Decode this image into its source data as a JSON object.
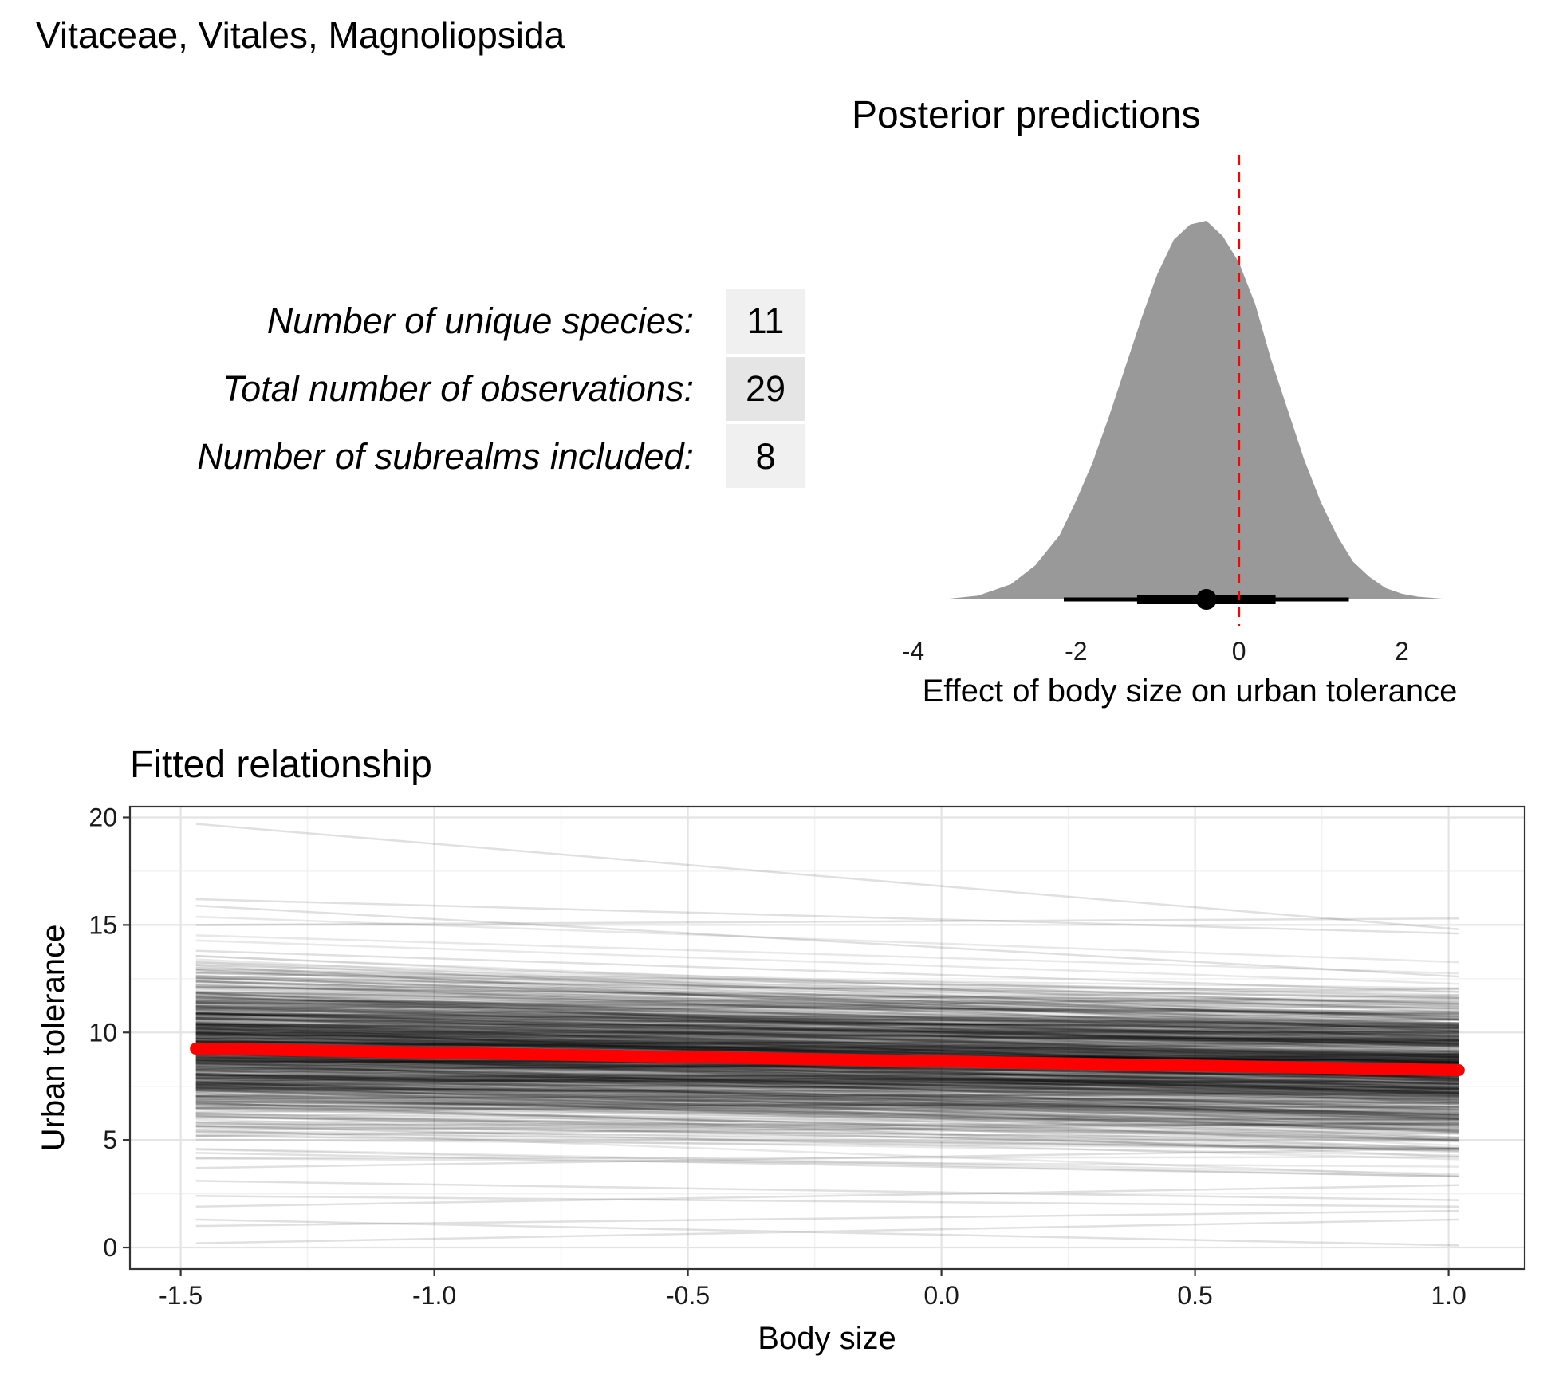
{
  "page_title": "Vitaceae, Vitales, Magnoliopsida",
  "stats": [
    {
      "label": "Number of unique species:",
      "value": "11"
    },
    {
      "label": "Total number of observations:",
      "value": "29"
    },
    {
      "label": "Number of subrealms included:",
      "value": "8"
    }
  ],
  "chart_data": [
    {
      "type": "area",
      "title": "Posterior predictions",
      "xlabel": "Effect of body size on urban tolerance",
      "ylabel": "",
      "xlim": [
        -4,
        2.95
      ],
      "xticks": [
        "-4",
        "-2",
        "0",
        "2"
      ],
      "grid": false,
      "density": {
        "x": [
          -3.65,
          -3.2,
          -2.8,
          -2.5,
          -2.2,
          -2.0,
          -1.8,
          -1.6,
          -1.4,
          -1.2,
          -1.0,
          -0.8,
          -0.6,
          -0.4,
          -0.2,
          0.0,
          0.2,
          0.4,
          0.6,
          0.8,
          1.0,
          1.2,
          1.4,
          1.6,
          1.8,
          2.0,
          2.2,
          2.5,
          2.85
        ],
        "y": [
          0.0,
          0.01,
          0.04,
          0.09,
          0.17,
          0.26,
          0.36,
          0.48,
          0.61,
          0.74,
          0.86,
          0.95,
          0.99,
          1.0,
          0.96,
          0.89,
          0.78,
          0.63,
          0.5,
          0.37,
          0.26,
          0.17,
          0.1,
          0.06,
          0.03,
          0.015,
          0.007,
          0.002,
          0.0
        ]
      },
      "point_estimate": -0.4,
      "interval_inner": [
        -1.25,
        0.45
      ],
      "interval_outer": [
        -2.15,
        1.35
      ],
      "reference_line": 0,
      "reference_line_color": "#ff0000",
      "fill_color": "#999999"
    },
    {
      "type": "line",
      "title": "Fitted relationship",
      "xlabel": "Body size",
      "ylabel": "Urban tolerance",
      "xlim": [
        -1.6,
        1.15
      ],
      "ylim": [
        -1.0,
        20.5
      ],
      "xticks": [
        "-1.5",
        "-1.0",
        "-0.5",
        "0.0",
        "0.5",
        "1.0"
      ],
      "yticks": [
        "0",
        "5",
        "10",
        "15",
        "20"
      ],
      "grid": true,
      "x_range": [
        -1.47,
        1.02
      ],
      "fitted_line": {
        "x": [
          -1.47,
          1.02
        ],
        "y": [
          9.25,
          8.25
        ],
        "color": "#ff0000"
      },
      "draws_color": "#000000",
      "draw_samples": [
        {
          "x": [
            -1.47,
            1.02
          ],
          "y": [
            19.7,
            14.8
          ]
        },
        {
          "x": [
            -1.47,
            1.02
          ],
          "y": [
            16.2,
            14.6
          ]
        },
        {
          "x": [
            -1.47,
            1.02
          ],
          "y": [
            15.9,
            12.6
          ]
        },
        {
          "x": [
            -1.47,
            1.02
          ],
          "y": [
            15.0,
            15.3
          ]
        },
        {
          "x": [
            -1.47,
            1.02
          ],
          "y": [
            13.8,
            11.9
          ]
        },
        {
          "x": [
            -1.47,
            1.02
          ],
          "y": [
            12.9,
            10.6
          ]
        },
        {
          "x": [
            -1.47,
            1.02
          ],
          "y": [
            12.1,
            11.4
          ]
        },
        {
          "x": [
            -1.47,
            1.02
          ],
          "y": [
            11.4,
            9.3
          ]
        },
        {
          "x": [
            -1.47,
            1.02
          ],
          "y": [
            10.8,
            10.1
          ]
        },
        {
          "x": [
            -1.47,
            1.02
          ],
          "y": [
            10.2,
            8.4
          ]
        },
        {
          "x": [
            -1.47,
            1.02
          ],
          "y": [
            9.6,
            9.1
          ]
        },
        {
          "x": [
            -1.47,
            1.02
          ],
          "y": [
            8.9,
            7.6
          ]
        },
        {
          "x": [
            -1.47,
            1.02
          ],
          "y": [
            8.3,
            8.6
          ]
        },
        {
          "x": [
            -1.47,
            1.02
          ],
          "y": [
            7.6,
            6.4
          ]
        },
        {
          "x": [
            -1.47,
            1.02
          ],
          "y": [
            6.9,
            7.2
          ]
        },
        {
          "x": [
            -1.47,
            1.02
          ],
          "y": [
            6.1,
            5.0
          ]
        },
        {
          "x": [
            -1.47,
            1.02
          ],
          "y": [
            5.2,
            5.8
          ]
        },
        {
          "x": [
            -1.47,
            1.02
          ],
          "y": [
            4.4,
            3.3
          ]
        },
        {
          "x": [
            -1.47,
            1.02
          ],
          "y": [
            3.7,
            4.6
          ]
        },
        {
          "x": [
            -1.47,
            1.02
          ],
          "y": [
            3.1,
            2.2
          ]
        },
        {
          "x": [
            -1.47,
            1.02
          ],
          "y": [
            2.4,
            1.9
          ]
        },
        {
          "x": [
            -1.47,
            1.02
          ],
          "y": [
            1.9,
            2.9
          ]
        },
        {
          "x": [
            -1.47,
            1.02
          ],
          "y": [
            1.0,
            1.7
          ]
        },
        {
          "x": [
            -1.47,
            1.02
          ],
          "y": [
            1.3,
            0.1
          ]
        },
        {
          "x": [
            -1.47,
            1.02
          ],
          "y": [
            0.2,
            1.3
          ]
        }
      ]
    }
  ]
}
